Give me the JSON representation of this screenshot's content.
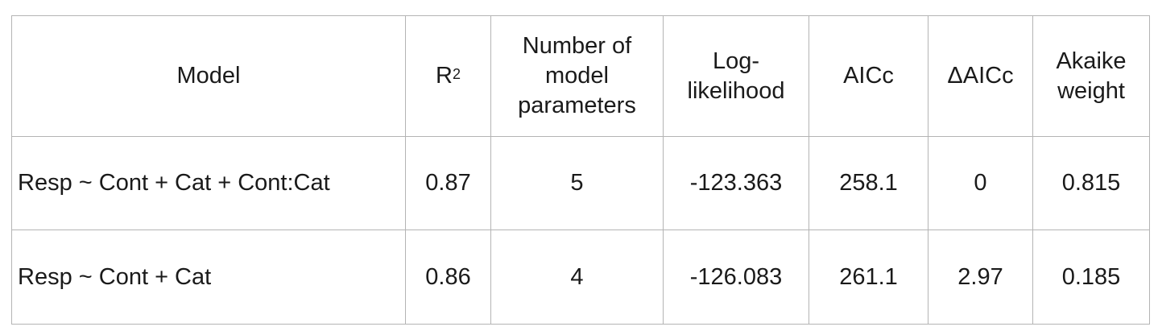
{
  "table": {
    "headers": {
      "model": "Model",
      "r2_base": "R",
      "r2_sup": "2",
      "num_params_lines": [
        "Number of",
        "model",
        "parameters"
      ],
      "log_likelihood_lines": [
        "Log-",
        "likelihood"
      ],
      "aicc": "AICc",
      "delta_aicc": "ΔAICc",
      "akaike_weight_lines": [
        "Akaike",
        "weight"
      ]
    },
    "rows": [
      {
        "model": "Resp ~ Cont + Cat + Cont:Cat",
        "r2": "0.87",
        "num_params": "5",
        "log_likelihood": "-123.363",
        "aicc": "258.1",
        "delta_aicc": "0",
        "akaike_weight": "0.815"
      },
      {
        "model": "Resp ~ Cont + Cat",
        "r2": "0.86",
        "num_params": "4",
        "log_likelihood": "-126.083",
        "aicc": "261.1",
        "delta_aicc": "2.97",
        "akaike_weight": "0.185"
      }
    ]
  }
}
